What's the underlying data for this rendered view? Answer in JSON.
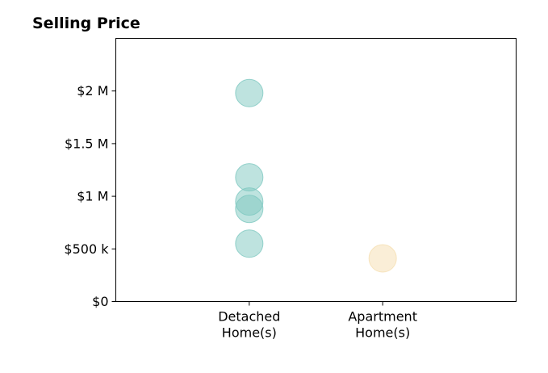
{
  "chart_data": {
    "type": "scatter",
    "title": "Selling Price",
    "xlabel": "",
    "ylabel": "",
    "categories": [
      "Detached\nHome(s)",
      "Apartment\nHome(s)"
    ],
    "ylim": [
      0,
      2500000
    ],
    "yticks": [
      {
        "value": 0,
        "label": "$0"
      },
      {
        "value": 500000,
        "label": "$500 k"
      },
      {
        "value": 1000000,
        "label": "$1 M"
      },
      {
        "value": 1500000,
        "label": "$1.5 M"
      },
      {
        "value": 2000000,
        "label": "$2 M"
      }
    ],
    "grid": false,
    "series": [
      {
        "category": "Detached\nHome(s)",
        "color": "#7ec8c0",
        "points": [
          1980000,
          1180000,
          950000,
          880000,
          550000
        ]
      },
      {
        "category": "Apartment\nHome(s)",
        "color": "#f5deb0",
        "points": [
          410000
        ]
      }
    ]
  }
}
